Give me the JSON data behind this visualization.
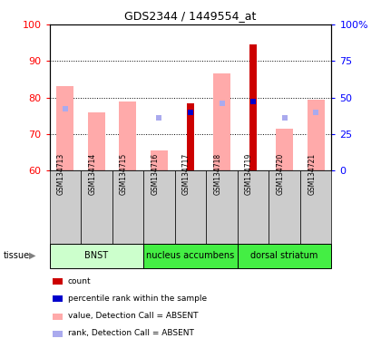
{
  "title": "GDS2344 / 1449554_at",
  "samples": [
    "GSM134713",
    "GSM134714",
    "GSM134715",
    "GSM134716",
    "GSM134717",
    "GSM134718",
    "GSM134719",
    "GSM134720",
    "GSM134721"
  ],
  "value_absent": [
    83,
    76,
    79,
    65.5,
    null,
    86.5,
    null,
    71.5,
    79.5
  ],
  "rank_absent": [
    77,
    null,
    null,
    74.5,
    null,
    78.5,
    null,
    74.5,
    76
  ],
  "count_present": [
    null,
    null,
    null,
    null,
    78.5,
    null,
    94.5,
    null,
    null
  ],
  "percentile_present": [
    null,
    null,
    null,
    null,
    76,
    null,
    79,
    null,
    null
  ],
  "ylim_left": [
    60,
    100
  ],
  "yticks_left": [
    60,
    70,
    80,
    90,
    100
  ],
  "yticks_right": [
    0,
    25,
    50,
    75,
    100
  ],
  "yticklabels_right": [
    "0",
    "25",
    "50",
    "75",
    "100%"
  ],
  "tissue_groups": [
    {
      "label": "BNST",
      "start": 0,
      "end": 3,
      "color": "#ccffcc"
    },
    {
      "label": "nucleus accumbens",
      "start": 3,
      "end": 6,
      "color": "#44ee44"
    },
    {
      "label": "dorsal striatum",
      "start": 6,
      "end": 9,
      "color": "#44ee44"
    }
  ],
  "color_value_absent": "#ffaaaa",
  "color_rank_absent": "#aaaaee",
  "color_count_present": "#cc0000",
  "color_percentile_present": "#0000cc",
  "legend_items": [
    {
      "color": "#cc0000",
      "label": "count"
    },
    {
      "color": "#0000cc",
      "label": "percentile rank within the sample"
    },
    {
      "color": "#ffaaaa",
      "label": "value, Detection Call = ABSENT"
    },
    {
      "color": "#aaaaee",
      "label": "rank, Detection Call = ABSENT"
    }
  ],
  "tissue_label": "tissue",
  "bg_color": "#cccccc",
  "plot_bg": "#ffffff"
}
